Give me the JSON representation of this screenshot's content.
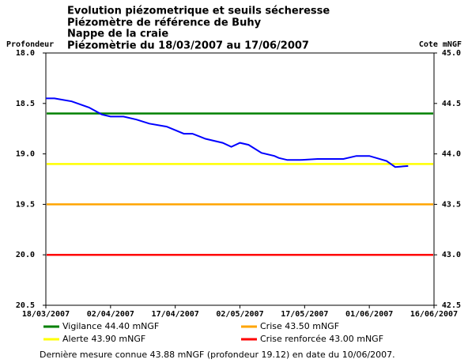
{
  "chart_data": {
    "type": "line",
    "title": [
      "Evolution piézometrique et seuils sécheresse",
      "Piézomètre de référence de Buhy",
      "Nappe de la craie",
      "Piézomètrie du 18/03/2007 au 17/06/2007"
    ],
    "ylabel": "Profondeur",
    "y2label": "Cote mNGF",
    "x": [
      "18/03/2007",
      "20/03/2007",
      "24/03/2007",
      "28/03/2007",
      "31/03/2007",
      "02/04/2007",
      "05/04/2007",
      "08/04/2007",
      "11/04/2007",
      "15/04/2007",
      "19/04/2007",
      "21/04/2007",
      "24/04/2007",
      "28/04/2007",
      "30/04/2007",
      "02/05/2007",
      "04/05/2007",
      "07/05/2007",
      "10/05/2007",
      "11/05/2007",
      "13/05/2007",
      "16/05/2007",
      "20/05/2007",
      "26/05/2007",
      "29/05/2007",
      "01/06/2007",
      "05/06/2007",
      "07/06/2007",
      "10/06/2007"
    ],
    "series": [
      {
        "color": "#0000ff",
        "values": [
          18.45,
          18.45,
          18.48,
          18.54,
          18.61,
          18.63,
          18.63,
          18.66,
          18.7,
          18.73,
          18.8,
          18.8,
          18.85,
          18.89,
          18.93,
          18.89,
          18.91,
          18.99,
          19.02,
          19.04,
          19.06,
          19.06,
          19.05,
          19.05,
          19.02,
          19.02,
          19.07,
          19.13,
          19.12
        ]
      }
    ],
    "thresholds": [
      {
        "name": "Vigilance 44.40 mNGF",
        "value": 44.4,
        "color": "#008000",
        "axis": "y2"
      },
      {
        "name": "Crise 43.50 mNGF",
        "value": 43.5,
        "color": "#ffa500",
        "axis": "y2"
      },
      {
        "name": "Alerte 43.90 mNGF",
        "value": 43.9,
        "color": "#ffff00",
        "axis": "y2"
      },
      {
        "name": "Crise renforcée 43.00 mNGF",
        "value": 43.0,
        "color": "#ff0000",
        "axis": "y2"
      }
    ],
    "xlim": [
      "18/03/2007",
      "16/06/2007"
    ],
    "xticks": [
      "18/03/2007",
      "02/04/2007",
      "17/04/2007",
      "02/05/2007",
      "17/05/2007",
      "01/06/2007",
      "16/06/2007"
    ],
    "ylim": [
      20.5,
      18.0
    ],
    "yticks": [
      {
        "value": 18.0,
        "label": "18.0"
      },
      {
        "value": 18.5,
        "label": "18.5"
      },
      {
        "value": 19.0,
        "label": "19.0"
      },
      {
        "value": 19.5,
        "label": "19.5"
      },
      {
        "value": 20.0,
        "label": "20.0"
      },
      {
        "value": 20.5,
        "label": "20.5"
      }
    ],
    "y2lim": [
      42.5,
      45.0
    ],
    "y2ticks": [
      {
        "value": 45.0,
        "label": "45.0"
      },
      {
        "value": 44.5,
        "label": "44.5"
      },
      {
        "value": 44.0,
        "label": "44.0"
      },
      {
        "value": 43.5,
        "label": "43.5"
      },
      {
        "value": 43.0,
        "label": "43.0"
      },
      {
        "value": 42.5,
        "label": "42.5"
      }
    ],
    "footnote": "Dernière mesure connue 43.88 mNGF (profondeur  19.12) en date du 10/06/2007."
  }
}
